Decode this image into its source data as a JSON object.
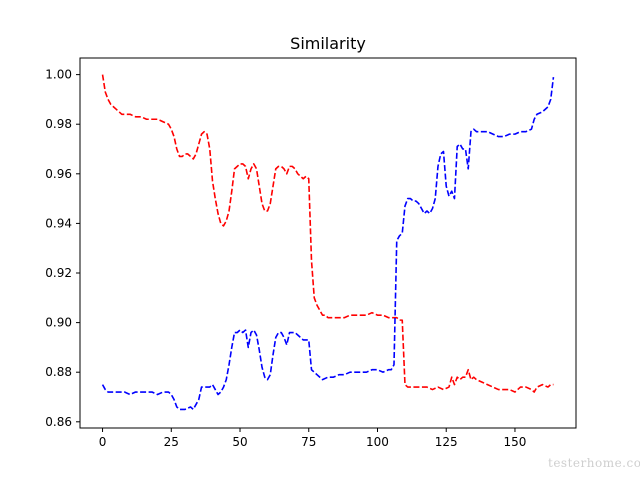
{
  "chart_data": {
    "type": "line",
    "title": "Similarity",
    "xlabel": "",
    "ylabel": "",
    "xlim": [
      -8.2,
      172.2
    ],
    "ylim": [
      0.8575,
      1.0067
    ],
    "x_ticks": [
      0,
      25,
      50,
      75,
      100,
      125,
      150
    ],
    "y_ticks": [
      0.86,
      0.88,
      0.9,
      0.92,
      0.94,
      0.96,
      0.98,
      1.0
    ],
    "x_tick_labels": [
      "0",
      "25",
      "50",
      "75",
      "100",
      "125",
      "150"
    ],
    "y_tick_labels": [
      "0.86",
      "0.88",
      "0.90",
      "0.92",
      "0.94",
      "0.96",
      "0.98",
      "1.00"
    ],
    "grid": false,
    "legend": "none",
    "line_style": "dashed",
    "series": [
      {
        "color": "#ff0000",
        "points": [
          [
            0,
            1.0
          ],
          [
            1,
            0.993
          ],
          [
            2,
            0.99
          ],
          [
            3,
            0.988
          ],
          [
            4,
            0.987
          ],
          [
            5,
            0.986
          ],
          [
            6,
            0.985
          ],
          [
            7,
            0.984
          ],
          [
            8,
            0.984
          ],
          [
            10,
            0.984
          ],
          [
            12,
            0.983
          ],
          [
            14,
            0.983
          ],
          [
            16,
            0.982
          ],
          [
            18,
            0.982
          ],
          [
            20,
            0.982
          ],
          [
            22,
            0.981
          ],
          [
            24,
            0.98
          ],
          [
            25,
            0.978
          ],
          [
            26,
            0.975
          ],
          [
            27,
            0.97
          ],
          [
            28,
            0.967
          ],
          [
            29,
            0.967
          ],
          [
            30,
            0.968
          ],
          [
            31,
            0.968
          ],
          [
            32,
            0.967
          ],
          [
            33,
            0.966
          ],
          [
            34,
            0.968
          ],
          [
            35,
            0.972
          ],
          [
            36,
            0.976
          ],
          [
            37,
            0.977
          ],
          [
            38,
            0.976
          ],
          [
            39,
            0.97
          ],
          [
            40,
            0.957
          ],
          [
            41,
            0.95
          ],
          [
            42,
            0.944
          ],
          [
            43,
            0.94
          ],
          [
            44,
            0.939
          ],
          [
            45,
            0.941
          ],
          [
            46,
            0.945
          ],
          [
            47,
            0.953
          ],
          [
            48,
            0.962
          ],
          [
            49,
            0.963
          ],
          [
            50,
            0.964
          ],
          [
            51,
            0.964
          ],
          [
            52,
            0.963
          ],
          [
            53,
            0.958
          ],
          [
            54,
            0.962
          ],
          [
            55,
            0.964
          ],
          [
            56,
            0.962
          ],
          [
            57,
            0.955
          ],
          [
            58,
            0.948
          ],
          [
            59,
            0.945
          ],
          [
            60,
            0.945
          ],
          [
            61,
            0.948
          ],
          [
            62,
            0.955
          ],
          [
            63,
            0.962
          ],
          [
            64,
            0.963
          ],
          [
            65,
            0.963
          ],
          [
            66,
            0.962
          ],
          [
            67,
            0.96
          ],
          [
            68,
            0.963
          ],
          [
            69,
            0.963
          ],
          [
            70,
            0.962
          ],
          [
            71,
            0.96
          ],
          [
            72,
            0.959
          ],
          [
            73,
            0.958
          ],
          [
            74,
            0.959
          ],
          [
            75,
            0.958
          ],
          [
            76,
            0.925
          ],
          [
            77,
            0.91
          ],
          [
            78,
            0.907
          ],
          [
            79,
            0.905
          ],
          [
            80,
            0.903
          ],
          [
            81,
            0.903
          ],
          [
            82,
            0.902
          ],
          [
            84,
            0.902
          ],
          [
            86,
            0.902
          ],
          [
            88,
            0.902
          ],
          [
            90,
            0.903
          ],
          [
            92,
            0.903
          ],
          [
            94,
            0.903
          ],
          [
            96,
            0.903
          ],
          [
            98,
            0.904
          ],
          [
            100,
            0.903
          ],
          [
            102,
            0.903
          ],
          [
            104,
            0.902
          ],
          [
            106,
            0.902
          ],
          [
            107,
            0.902
          ],
          [
            108,
            0.901
          ],
          [
            109,
            0.901
          ],
          [
            110,
            0.875
          ],
          [
            111,
            0.874
          ],
          [
            112,
            0.874
          ],
          [
            114,
            0.874
          ],
          [
            116,
            0.874
          ],
          [
            118,
            0.874
          ],
          [
            120,
            0.873
          ],
          [
            122,
            0.874
          ],
          [
            124,
            0.873
          ],
          [
            126,
            0.874
          ],
          [
            127,
            0.878
          ],
          [
            128,
            0.875
          ],
          [
            129,
            0.878
          ],
          [
            130,
            0.877
          ],
          [
            131,
            0.878
          ],
          [
            132,
            0.878
          ],
          [
            133,
            0.881
          ],
          [
            134,
            0.877
          ],
          [
            135,
            0.878
          ],
          [
            136,
            0.877
          ],
          [
            138,
            0.876
          ],
          [
            140,
            0.875
          ],
          [
            142,
            0.874
          ],
          [
            144,
            0.873
          ],
          [
            146,
            0.873
          ],
          [
            148,
            0.873
          ],
          [
            150,
            0.872
          ],
          [
            152,
            0.874
          ],
          [
            154,
            0.874
          ],
          [
            156,
            0.873
          ],
          [
            157,
            0.872
          ],
          [
            158,
            0.874
          ],
          [
            160,
            0.875
          ],
          [
            162,
            0.874
          ],
          [
            163,
            0.875
          ],
          [
            164,
            0.875
          ]
        ]
      },
      {
        "color": "#0000ff",
        "points": [
          [
            0,
            0.875
          ],
          [
            1,
            0.873
          ],
          [
            2,
            0.872
          ],
          [
            4,
            0.872
          ],
          [
            6,
            0.872
          ],
          [
            8,
            0.872
          ],
          [
            10,
            0.871
          ],
          [
            12,
            0.872
          ],
          [
            14,
            0.872
          ],
          [
            16,
            0.872
          ],
          [
            18,
            0.872
          ],
          [
            20,
            0.871
          ],
          [
            22,
            0.872
          ],
          [
            24,
            0.872
          ],
          [
            25,
            0.871
          ],
          [
            26,
            0.869
          ],
          [
            27,
            0.866
          ],
          [
            28,
            0.865
          ],
          [
            30,
            0.865
          ],
          [
            32,
            0.866
          ],
          [
            33,
            0.865
          ],
          [
            34,
            0.867
          ],
          [
            35,
            0.869
          ],
          [
            36,
            0.874
          ],
          [
            37,
            0.874
          ],
          [
            38,
            0.874
          ],
          [
            39,
            0.874
          ],
          [
            40,
            0.875
          ],
          [
            41,
            0.873
          ],
          [
            42,
            0.871
          ],
          [
            43,
            0.872
          ],
          [
            44,
            0.874
          ],
          [
            45,
            0.877
          ],
          [
            46,
            0.883
          ],
          [
            47,
            0.89
          ],
          [
            48,
            0.896
          ],
          [
            49,
            0.896
          ],
          [
            50,
            0.897
          ],
          [
            51,
            0.896
          ],
          [
            52,
            0.897
          ],
          [
            53,
            0.89
          ],
          [
            54,
            0.896
          ],
          [
            55,
            0.897
          ],
          [
            56,
            0.895
          ],
          [
            57,
            0.889
          ],
          [
            58,
            0.882
          ],
          [
            59,
            0.878
          ],
          [
            60,
            0.877
          ],
          [
            61,
            0.879
          ],
          [
            62,
            0.887
          ],
          [
            63,
            0.894
          ],
          [
            64,
            0.896
          ],
          [
            65,
            0.896
          ],
          [
            66,
            0.894
          ],
          [
            67,
            0.891
          ],
          [
            68,
            0.896
          ],
          [
            69,
            0.896
          ],
          [
            70,
            0.896
          ],
          [
            71,
            0.895
          ],
          [
            72,
            0.894
          ],
          [
            73,
            0.893
          ],
          [
            74,
            0.893
          ],
          [
            75,
            0.893
          ],
          [
            76,
            0.881
          ],
          [
            77,
            0.88
          ],
          [
            78,
            0.879
          ],
          [
            80,
            0.877
          ],
          [
            82,
            0.878
          ],
          [
            84,
            0.878
          ],
          [
            86,
            0.879
          ],
          [
            88,
            0.879
          ],
          [
            90,
            0.88
          ],
          [
            92,
            0.88
          ],
          [
            94,
            0.88
          ],
          [
            96,
            0.88
          ],
          [
            98,
            0.881
          ],
          [
            100,
            0.881
          ],
          [
            102,
            0.88
          ],
          [
            104,
            0.881
          ],
          [
            105,
            0.881
          ],
          [
            106,
            0.883
          ],
          [
            107,
            0.933
          ],
          [
            108,
            0.935
          ],
          [
            109,
            0.936
          ],
          [
            110,
            0.947
          ],
          [
            111,
            0.95
          ],
          [
            112,
            0.95
          ],
          [
            113,
            0.949
          ],
          [
            114,
            0.949
          ],
          [
            115,
            0.948
          ],
          [
            116,
            0.946
          ],
          [
            117,
            0.944
          ],
          [
            118,
            0.945
          ],
          [
            119,
            0.944
          ],
          [
            120,
            0.946
          ],
          [
            121,
            0.95
          ],
          [
            122,
            0.963
          ],
          [
            123,
            0.968
          ],
          [
            124,
            0.969
          ],
          [
            125,
            0.955
          ],
          [
            126,
            0.951
          ],
          [
            127,
            0.953
          ],
          [
            128,
            0.95
          ],
          [
            129,
            0.971
          ],
          [
            130,
            0.972
          ],
          [
            131,
            0.97
          ],
          [
            132,
            0.97
          ],
          [
            133,
            0.962
          ],
          [
            134,
            0.977
          ],
          [
            135,
            0.978
          ],
          [
            136,
            0.977
          ],
          [
            138,
            0.977
          ],
          [
            140,
            0.977
          ],
          [
            142,
            0.976
          ],
          [
            144,
            0.975
          ],
          [
            146,
            0.975
          ],
          [
            148,
            0.976
          ],
          [
            150,
            0.976
          ],
          [
            152,
            0.977
          ],
          [
            154,
            0.977
          ],
          [
            156,
            0.978
          ],
          [
            157,
            0.982
          ],
          [
            158,
            0.984
          ],
          [
            160,
            0.985
          ],
          [
            162,
            0.987
          ],
          [
            163,
            0.99
          ],
          [
            164,
            0.999
          ]
        ]
      }
    ]
  },
  "watermark": "testerhome.com"
}
